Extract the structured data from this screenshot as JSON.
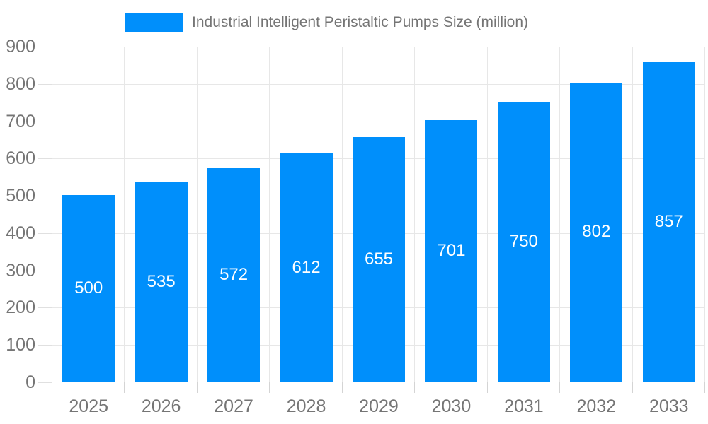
{
  "legend": {
    "label": "Industrial Intelligent Peristaltic Pumps Size (million)",
    "swatch_color": "#008FFB"
  },
  "chart_data": {
    "type": "bar",
    "title": "Industrial Intelligent Peristaltic Pumps Size (million)",
    "series_name": "Industrial Intelligent Peristaltic Pumps Size (million)",
    "categories": [
      "2025",
      "2026",
      "2027",
      "2028",
      "2029",
      "2030",
      "2031",
      "2032",
      "2033"
    ],
    "values": [
      500,
      535,
      572,
      612,
      655,
      701,
      750,
      802,
      857
    ],
    "xlabel": "",
    "ylabel": "",
    "ylim": [
      0,
      900
    ],
    "y_tick_interval": 100,
    "y_tick_labels": [
      "0",
      "100",
      "200",
      "300",
      "400",
      "500",
      "600",
      "700",
      "800",
      "900"
    ],
    "grid": true,
    "legend_position": "top",
    "bar_color": "#008FFB",
    "bar_label_color": "#ffffff",
    "axis_label_color": "#757575",
    "grid_color": "#e7e7e7",
    "axis_line_color": "#a8a8a8"
  }
}
